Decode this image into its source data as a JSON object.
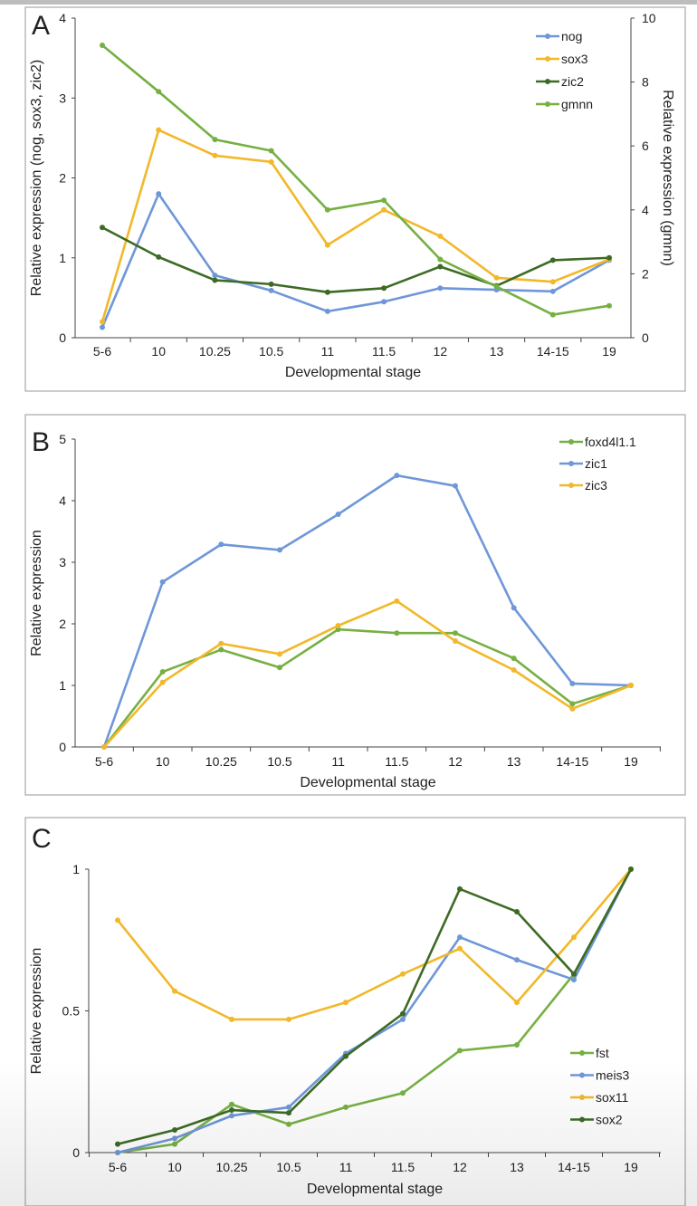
{
  "chart_data": [
    {
      "type": "line",
      "panel_label": "A",
      "xlabel": "Developmental stage",
      "ylabel": "Relative expression (nog, sox3, zic2)",
      "y2label": "Relative expression (gmnn)",
      "categories": [
        "5-6",
        "10",
        "10.25",
        "10.5",
        "11",
        "11.5",
        "12",
        "13",
        "14-15",
        "19"
      ],
      "ylim": [
        0,
        4
      ],
      "yticks": [
        0,
        1,
        2,
        3,
        4
      ],
      "y2lim": [
        0,
        10
      ],
      "y2ticks": [
        0,
        2,
        4,
        6,
        8,
        10
      ],
      "legend_position": "top-right",
      "grid": false,
      "series": [
        {
          "name": "nog",
          "color": "#6f97d8",
          "axis": "left",
          "values": [
            0.13,
            1.8,
            0.78,
            0.59,
            0.33,
            0.45,
            0.62,
            0.6,
            0.58,
            0.97
          ]
        },
        {
          "name": "sox3",
          "color": "#f2b82a",
          "axis": "left",
          "values": [
            0.2,
            2.6,
            2.28,
            2.2,
            1.16,
            1.6,
            1.27,
            0.75,
            0.7,
            0.98
          ]
        },
        {
          "name": "zic2",
          "color": "#3d6b25",
          "axis": "left",
          "values": [
            1.38,
            1.01,
            0.72,
            0.67,
            0.57,
            0.62,
            0.89,
            0.65,
            0.97,
            1.0
          ]
        },
        {
          "name": "gmnn",
          "color": "#76b043",
          "axis": "right",
          "values": [
            9.15,
            7.7,
            6.2,
            5.85,
            4.0,
            4.3,
            2.45,
            1.6,
            0.72,
            1.0
          ]
        }
      ]
    },
    {
      "type": "line",
      "panel_label": "B",
      "xlabel": "Developmental stage",
      "ylabel": "Relative expression",
      "categories": [
        "5-6",
        "10",
        "10.25",
        "10.5",
        "11",
        "11.5",
        "12",
        "13",
        "14-15",
        "19"
      ],
      "ylim": [
        0,
        5
      ],
      "yticks": [
        0,
        1,
        2,
        3,
        4,
        5
      ],
      "legend_position": "top-right",
      "grid": false,
      "series": [
        {
          "name": "foxd4l1.1",
          "color": "#76b043",
          "values": [
            0,
            1.22,
            1.58,
            1.29,
            1.91,
            1.85,
            1.85,
            1.44,
            0.7,
            1.0
          ]
        },
        {
          "name": "zic1",
          "color": "#6f97d8",
          "values": [
            0,
            2.68,
            3.29,
            3.2,
            3.78,
            4.41,
            4.24,
            2.26,
            1.03,
            1.0
          ]
        },
        {
          "name": "zic3",
          "color": "#f2b82a",
          "values": [
            0,
            1.05,
            1.68,
            1.51,
            1.97,
            2.37,
            1.72,
            1.25,
            0.62,
            1.0
          ]
        }
      ]
    },
    {
      "type": "line",
      "panel_label": "C",
      "xlabel": "Developmental stage",
      "ylabel": "Relative expression",
      "categories": [
        "5-6",
        "10",
        "10.25",
        "10.5",
        "11",
        "11.5",
        "12",
        "13",
        "14-15",
        "19"
      ],
      "ylim": [
        0,
        1
      ],
      "yticks": [
        0,
        0.5,
        1
      ],
      "legend_position": "bottom-right",
      "grid": false,
      "series": [
        {
          "name": "fst",
          "color": "#76b043",
          "values": [
            0,
            0.03,
            0.17,
            0.1,
            0.16,
            0.21,
            0.36,
            0.38,
            0.63,
            1.0
          ]
        },
        {
          "name": "meis3",
          "color": "#6f97d8",
          "values": [
            0,
            0.05,
            0.13,
            0.16,
            0.35,
            0.47,
            0.76,
            0.68,
            0.61,
            1.0
          ]
        },
        {
          "name": "sox11",
          "color": "#f2b82a",
          "values": [
            0.82,
            0.57,
            0.47,
            0.47,
            0.53,
            0.63,
            0.72,
            0.53,
            0.76,
            1.0
          ]
        },
        {
          "name": "sox2",
          "color": "#3d6b25",
          "values": [
            0.03,
            0.08,
            0.15,
            0.14,
            0.34,
            0.49,
            0.93,
            0.85,
            0.63,
            1.0
          ]
        }
      ]
    }
  ]
}
